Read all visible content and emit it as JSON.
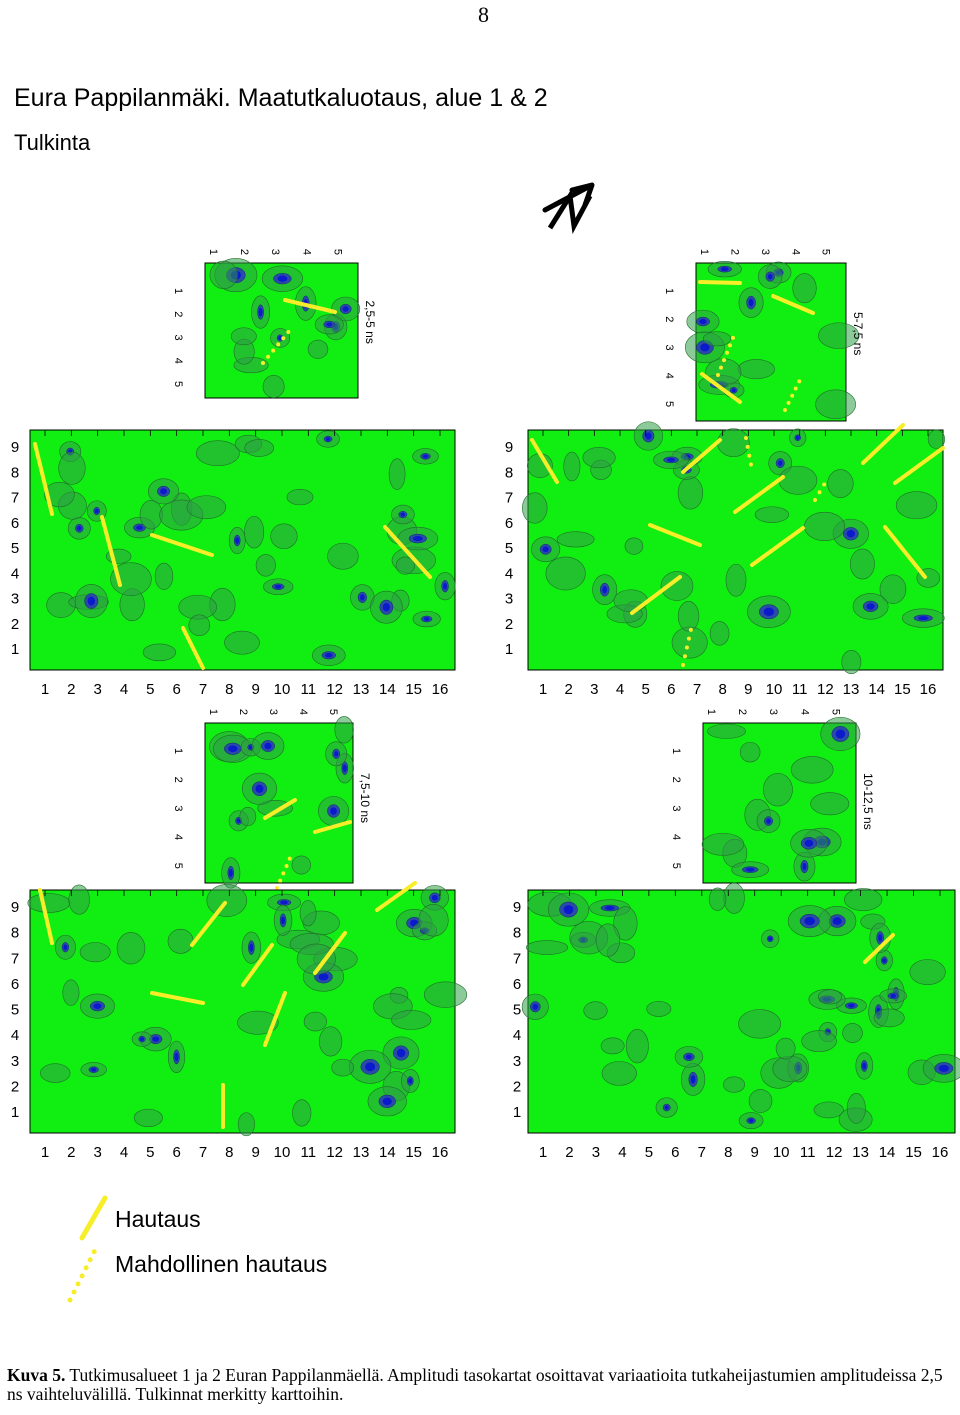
{
  "page_number": "8",
  "title": "Eura Pappilanmäki. Maatutkaluotaus, alue 1 & 2",
  "subtitle": "Tulkinta",
  "north_arrow_label": "N",
  "panels": [
    {
      "id": "p1",
      "time_window": "2,5-5 ns"
    },
    {
      "id": "p2",
      "time_window": "5-7,5 ns"
    },
    {
      "id": "p3",
      "time_window": "7,5-10 ns"
    },
    {
      "id": "p4",
      "time_window": "10-12,5 ns"
    }
  ],
  "large_grid": {
    "x_ticks": [
      "1",
      "2",
      "3",
      "4",
      "5",
      "6",
      "7",
      "8",
      "9",
      "10",
      "11",
      "12",
      "13",
      "14",
      "15",
      "16"
    ],
    "y_ticks": [
      "9",
      "8",
      "7",
      "6",
      "5",
      "4",
      "3",
      "2",
      "1"
    ]
  },
  "small_grid": {
    "top_ticks": [
      "1",
      "2",
      "3",
      "4",
      "5"
    ],
    "left_ticks": [
      "1",
      "2",
      "3",
      "4",
      "5"
    ]
  },
  "legend": {
    "burial": "Hautaus",
    "possible_burial": "Mahdollinen hautaus"
  },
  "caption": {
    "label": "Kuva 5.",
    "text": " Tutkimusalueet 1 ja 2 Euran Pappilanmäellä. Amplitudi tasokartat osoittavat variaatioita tutkaheijastumien amplitudeissa 2,5 ns vaihteluvälillä. Tulkinnat merkitty karttoihin."
  },
  "colors": {
    "background_field": "#11ee11",
    "contour_mid": "#2f9f45",
    "anomaly_strong": "#0a1acc",
    "anomaly_mid": "#2a4aa8",
    "interpretation": "#f7ee2a"
  }
}
